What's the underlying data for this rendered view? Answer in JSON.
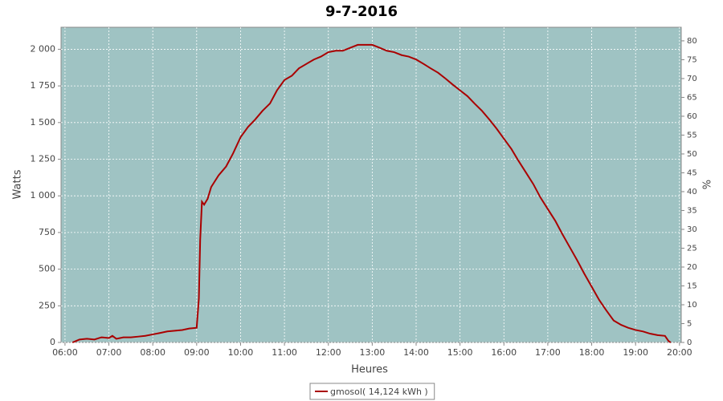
{
  "chart_data": {
    "type": "line",
    "title": "9-7-2016",
    "x_label": "Heures",
    "y_label": "Watts",
    "y2_label": "%",
    "x": [
      6.17,
      6.25,
      6.33,
      6.5,
      6.67,
      6.83,
      7.0,
      7.08,
      7.17,
      7.33,
      7.5,
      7.67,
      7.83,
      8.0,
      8.17,
      8.33,
      8.5,
      8.67,
      8.83,
      9.0,
      9.05,
      9.08,
      9.12,
      9.17,
      9.25,
      9.33,
      9.5,
      9.67,
      9.83,
      10.0,
      10.17,
      10.33,
      10.5,
      10.67,
      10.83,
      11.0,
      11.17,
      11.33,
      11.5,
      11.67,
      11.83,
      12.0,
      12.17,
      12.33,
      12.5,
      12.67,
      12.83,
      13.0,
      13.17,
      13.33,
      13.5,
      13.67,
      13.83,
      14.0,
      14.17,
      14.33,
      14.5,
      14.67,
      14.83,
      15.0,
      15.17,
      15.33,
      15.5,
      15.67,
      15.83,
      16.0,
      16.17,
      16.33,
      16.5,
      16.67,
      16.83,
      17.0,
      17.17,
      17.33,
      17.5,
      17.67,
      17.83,
      18.0,
      18.17,
      18.33,
      18.5,
      18.67,
      18.83,
      19.0,
      19.17,
      19.33,
      19.5,
      19.67,
      19.75,
      19.8
    ],
    "series": [
      {
        "name": "gmosol( 14,124 kWh )",
        "color": "#aa0000",
        "values": [
          0,
          10,
          20,
          25,
          20,
          35,
          30,
          45,
          25,
          35,
          35,
          40,
          45,
          55,
          65,
          75,
          80,
          85,
          95,
          100,
          300,
          700,
          960,
          940,
          980,
          1060,
          1140,
          1200,
          1290,
          1400,
          1470,
          1520,
          1580,
          1630,
          1720,
          1790,
          1820,
          1870,
          1900,
          1930,
          1950,
          1980,
          1990,
          1990,
          2010,
          2030,
          2030,
          2030,
          2010,
          1990,
          1980,
          1960,
          1950,
          1930,
          1900,
          1870,
          1840,
          1800,
          1760,
          1720,
          1680,
          1630,
          1580,
          1520,
          1460,
          1390,
          1320,
          1240,
          1160,
          1080,
          990,
          910,
          830,
          740,
          650,
          560,
          470,
          380,
          290,
          220,
          150,
          120,
          100,
          85,
          75,
          60,
          50,
          45,
          10,
          0
        ]
      }
    ],
    "xlim": [
      5.91,
      20.04
    ],
    "xticks": [
      {
        "value": 6,
        "label": "06:00"
      },
      {
        "value": 7,
        "label": "07:00"
      },
      {
        "value": 8,
        "label": "08:00"
      },
      {
        "value": 9,
        "label": "09:00"
      },
      {
        "value": 10,
        "label": "10:00"
      },
      {
        "value": 11,
        "label": "11:00"
      },
      {
        "value": 12,
        "label": "12:00"
      },
      {
        "value": 13,
        "label": "13:00"
      },
      {
        "value": 14,
        "label": "14:00"
      },
      {
        "value": 15,
        "label": "15:00"
      },
      {
        "value": 16,
        "label": "16:00"
      },
      {
        "value": 17,
        "label": "17:00"
      },
      {
        "value": 18,
        "label": "18:00"
      },
      {
        "value": 19,
        "label": "19:00"
      },
      {
        "value": 20,
        "label": "20:00"
      }
    ],
    "ylim": [
      0,
      2150
    ],
    "yticks": [
      0,
      250,
      500,
      750,
      {
        "value": 1000,
        "label": "1 000"
      },
      {
        "value": 1250,
        "label": "1 250"
      },
      {
        "value": 1500,
        "label": "1 500"
      },
      {
        "value": 1750,
        "label": "1 750"
      },
      {
        "value": 2000,
        "label": "2 000"
      }
    ],
    "y2lim": [
      0,
      83.6
    ],
    "y2ticks": [
      0,
      5,
      10,
      15,
      20,
      25,
      30,
      35,
      40,
      45,
      50,
      55,
      60,
      65,
      70,
      75,
      80
    ],
    "grid": true,
    "plot_background": "#9fc3c3",
    "legend": "bottom"
  }
}
